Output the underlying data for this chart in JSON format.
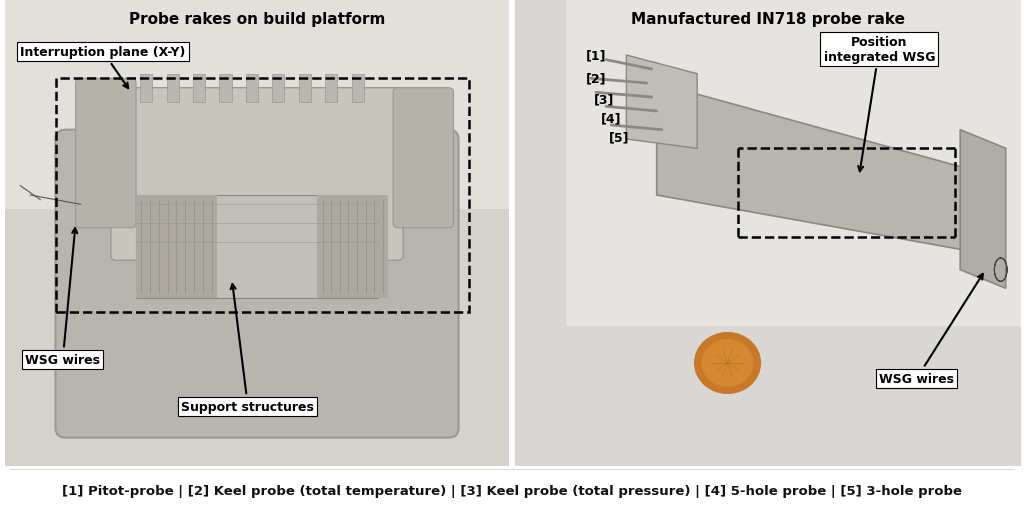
{
  "title_left": "Probe rakes on build platform",
  "title_right": "Manufactured IN718 probe rake",
  "caption": "[1] Pitot-probe | [2] Keel probe (total temperature) | [3] Keel probe (total pressure) | [4] 5-hole probe | [5] 3-hole probe",
  "bg_color": "#ffffff",
  "photo_bg_left": "#e8e6e2",
  "photo_bg_right": "#eaeae8",
  "title_fontsize": 11,
  "caption_fontsize": 9.5,
  "annotation_fontsize": 9,
  "label_fontsize": 9
}
